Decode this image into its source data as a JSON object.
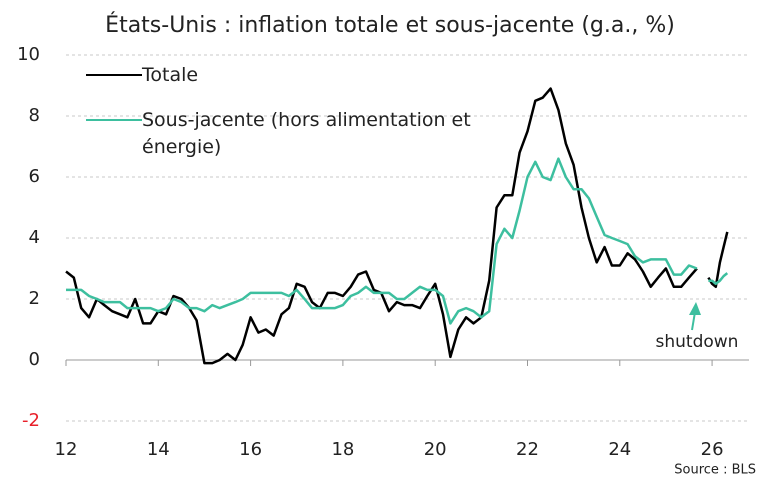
{
  "chart_data": {
    "type": "line",
    "title": "États-Unis : inflation totale et sous-jacente (g.a., %)",
    "source": "Source : BLS",
    "annotation": "shutdown",
    "x": [
      12,
      12.17,
      12.33,
      12.5,
      12.67,
      12.83,
      13,
      13.17,
      13.33,
      13.5,
      13.67,
      13.83,
      14,
      14.17,
      14.33,
      14.5,
      14.67,
      14.83,
      15,
      15.17,
      15.33,
      15.5,
      15.67,
      15.83,
      16,
      16.17,
      16.33,
      16.5,
      16.67,
      16.83,
      17,
      17.17,
      17.33,
      17.5,
      17.67,
      17.83,
      18,
      18.17,
      18.33,
      18.5,
      18.67,
      18.83,
      19,
      19.17,
      19.33,
      19.5,
      19.67,
      19.83,
      20,
      20.17,
      20.33,
      20.5,
      20.67,
      20.83,
      21,
      21.17,
      21.33,
      21.5,
      21.67,
      21.83,
      22,
      22.17,
      22.33,
      22.5,
      22.67,
      22.83,
      23,
      23.17,
      23.33,
      23.5,
      23.67,
      23.83,
      24,
      24.17,
      24.33,
      24.5,
      24.67,
      24.83,
      25,
      25.17,
      25.33,
      25.5,
      25.67,
      25.83,
      25.92,
      26,
      26.08,
      26.17,
      26.25,
      26.33
    ],
    "series": [
      {
        "name": "Totale",
        "color": "#000000",
        "values": [
          2.9,
          2.7,
          1.7,
          1.4,
          2.0,
          1.8,
          1.6,
          1.5,
          1.4,
          2.0,
          1.2,
          1.2,
          1.6,
          1.5,
          2.1,
          2.0,
          1.7,
          1.3,
          -0.1,
          -0.1,
          0.0,
          0.2,
          0.0,
          0.5,
          1.4,
          0.9,
          1.0,
          0.8,
          1.5,
          1.7,
          2.5,
          2.4,
          1.9,
          1.7,
          2.2,
          2.2,
          2.1,
          2.4,
          2.8,
          2.9,
          2.3,
          2.2,
          1.6,
          1.9,
          1.8,
          1.8,
          1.7,
          2.1,
          2.5,
          1.5,
          0.1,
          1.0,
          1.4,
          1.2,
          1.4,
          2.6,
          5.0,
          5.4,
          5.4,
          6.8,
          7.5,
          8.5,
          8.6,
          8.9,
          8.2,
          7.1,
          6.4,
          5.0,
          4.0,
          3.2,
          3.7,
          3.1,
          3.1,
          3.5,
          3.3,
          2.9,
          2.4,
          2.7,
          3.0,
          2.4,
          2.4,
          2.7,
          3.0,
          null,
          2.7,
          2.5,
          2.4,
          3.2,
          3.7,
          4.2
        ]
      },
      {
        "name": "Sous-jacente (hors alimentation et énergie)",
        "color": "#3dbf9f",
        "values": [
          2.3,
          2.3,
          2.3,
          2.1,
          2.0,
          1.9,
          1.9,
          1.9,
          1.7,
          1.7,
          1.7,
          1.7,
          1.6,
          1.7,
          2.0,
          1.9,
          1.7,
          1.7,
          1.6,
          1.8,
          1.7,
          1.8,
          1.9,
          2.0,
          2.2,
          2.2,
          2.2,
          2.2,
          2.2,
          2.1,
          2.3,
          2.0,
          1.7,
          1.7,
          1.7,
          1.7,
          1.8,
          2.1,
          2.2,
          2.4,
          2.2,
          2.2,
          2.2,
          2.0,
          2.0,
          2.2,
          2.4,
          2.3,
          2.3,
          2.1,
          1.2,
          1.6,
          1.7,
          1.6,
          1.4,
          1.6,
          3.8,
          4.3,
          4.0,
          4.9,
          6.0,
          6.5,
          6.0,
          5.9,
          6.6,
          6.0,
          5.6,
          5.6,
          5.3,
          4.7,
          4.1,
          4.0,
          3.9,
          3.8,
          3.4,
          3.2,
          3.3,
          3.3,
          3.3,
          2.8,
          2.8,
          3.1,
          3.0,
          null,
          2.6,
          2.6,
          2.5,
          2.6,
          2.75,
          2.85
        ]
      }
    ],
    "xlim": [
      12,
      26.8
    ],
    "xticks": [
      12,
      14,
      16,
      18,
      20,
      22,
      24,
      26
    ],
    "ylim": [
      -2,
      10
    ],
    "yticks": [
      -2,
      0,
      2,
      4,
      6,
      8,
      10
    ],
    "negative_tick_color": "#e8202a",
    "grid": true
  }
}
